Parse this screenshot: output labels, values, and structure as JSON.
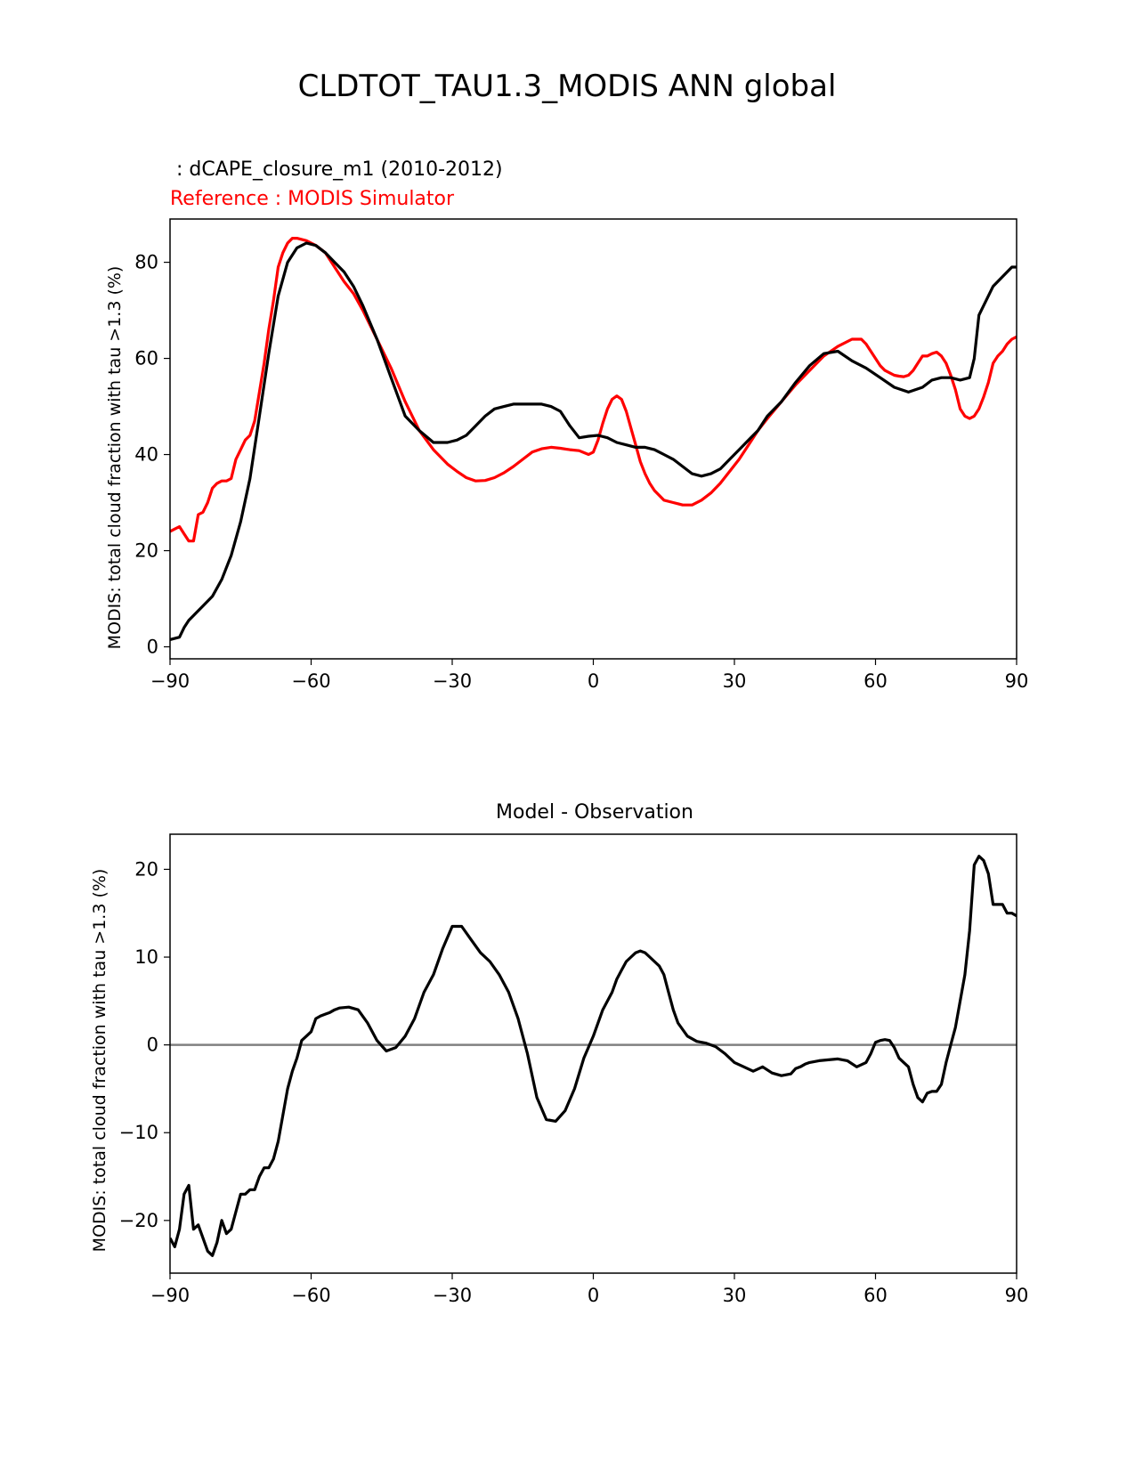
{
  "figure_title": "CLDTOT_TAU1.3_MODIS ANN global",
  "chart_data": [
    {
      "type": "line",
      "test_label": " : dCAPE_closure_m1 (2010-2012)",
      "ref_label": "Reference : MODIS Simulator",
      "title": "",
      "xlabel": "",
      "ylabel": "MODIS: total cloud fraction with tau >1.3 (%)",
      "xlim": [
        -90,
        90
      ],
      "ylim": [
        -2.5,
        89
      ],
      "xticks": [
        -90,
        -60,
        -30,
        0,
        30,
        60,
        90
      ],
      "xtick_labels": [
        "−90",
        "−60",
        "−30",
        "0",
        "30",
        "60",
        "90"
      ],
      "yticks": [
        0,
        20,
        40,
        60,
        80
      ],
      "ytick_labels": [
        "0",
        "20",
        "40",
        "60",
        "80"
      ],
      "series": [
        {
          "name": "dCAPE_closure_m1 (2010-2012)",
          "color": "#000000",
          "x": [
            -90,
            -88,
            -87,
            -86,
            -85,
            -83,
            -81,
            -79,
            -77,
            -75,
            -73,
            -71,
            -69,
            -67,
            -65,
            -63,
            -61,
            -59,
            -57,
            -55,
            -53,
            -51,
            -49,
            -46,
            -43,
            -40,
            -37,
            -34,
            -31,
            -29,
            -27,
            -25,
            -23,
            -21,
            -19,
            -17,
            -15,
            -13,
            -11,
            -9,
            -7,
            -5,
            -3,
            -1,
            1,
            3,
            5,
            7,
            9,
            11,
            13,
            15,
            17,
            19,
            21,
            23,
            25,
            27,
            29,
            31,
            33,
            35,
            37,
            40,
            43,
            46,
            49,
            52,
            55,
            58,
            61,
            64,
            67,
            70,
            72,
            74,
            76,
            78,
            80,
            81,
            82,
            83,
            85,
            87,
            89,
            90
          ],
          "values": [
            1.5,
            2,
            4,
            5.5,
            6.5,
            8.5,
            10.5,
            14,
            19,
            26,
            35,
            48,
            61,
            73,
            80,
            83,
            84,
            83.5,
            82,
            80,
            78,
            75,
            71,
            64,
            56,
            48,
            45,
            42.5,
            42.5,
            43,
            44,
            46,
            48,
            49.5,
            50,
            50.5,
            50.5,
            50.5,
            50.5,
            50,
            49,
            46,
            43.5,
            43.8,
            44,
            43.5,
            42.5,
            42,
            41.5,
            41.5,
            41,
            40,
            39,
            37.5,
            36,
            35.5,
            36,
            37,
            39,
            41,
            43,
            45,
            48,
            51,
            55,
            58.5,
            61,
            61.5,
            59.5,
            58,
            56,
            54,
            53,
            54,
            55.5,
            56,
            56,
            55.5,
            56,
            60,
            69,
            71,
            75,
            77,
            79,
            79
          ]
        },
        {
          "name": "Reference : MODIS Simulator",
          "color": "#ff0000",
          "x": [
            -90,
            -89,
            -88,
            -87,
            -86,
            -85,
            -84,
            -83,
            -82,
            -81,
            -80,
            -79,
            -78,
            -77,
            -76,
            -75,
            -74,
            -73,
            -72,
            -71,
            -70,
            -69,
            -68,
            -67,
            -66,
            -65,
            -64,
            -63,
            -61,
            -59,
            -57,
            -55,
            -53,
            -51,
            -49,
            -46,
            -43,
            -40,
            -37,
            -34,
            -31,
            -29,
            -27,
            -25,
            -23,
            -21,
            -19,
            -17,
            -15,
            -13,
            -11,
            -9,
            -7,
            -5,
            -3,
            -1,
            0,
            1,
            2,
            3,
            4,
            5,
            6,
            7,
            8,
            9,
            10,
            11,
            12,
            13,
            15,
            17,
            19,
            21,
            23,
            25,
            27,
            29,
            31,
            33,
            35,
            37,
            40,
            43,
            46,
            49,
            52,
            55,
            57,
            58,
            59,
            60,
            61,
            62,
            63,
            64,
            65,
            66,
            67,
            68,
            69,
            70,
            71,
            72,
            73,
            74,
            75,
            76,
            77,
            78,
            79,
            80,
            81,
            82,
            83,
            84,
            85,
            86,
            87,
            88,
            89,
            90
          ],
          "values": [
            24,
            24.5,
            25,
            23.5,
            22,
            22,
            27.5,
            28,
            30,
            33,
            34,
            34.5,
            34.5,
            35,
            39,
            41,
            43,
            44,
            47,
            53,
            59,
            66,
            72,
            79,
            82,
            84,
            85,
            85,
            84.5,
            83.5,
            82,
            79,
            76,
            73.5,
            70,
            64,
            58,
            51,
            45,
            41,
            38,
            36.5,
            35.2,
            34.5,
            34.6,
            35.2,
            36.2,
            37.5,
            39,
            40.5,
            41.2,
            41.5,
            41.3,
            41,
            40.8,
            40,
            40.5,
            43,
            46.5,
            49.5,
            51.5,
            52.2,
            51.5,
            49,
            45.5,
            42,
            38.5,
            36,
            34,
            32.5,
            30.5,
            30,
            29.5,
            29.5,
            30.5,
            32,
            34,
            36.5,
            39,
            42,
            45,
            47.5,
            51,
            54.5,
            57.5,
            60.5,
            62.5,
            64,
            64,
            63,
            61.5,
            60,
            58.5,
            57.5,
            57,
            56.5,
            56.3,
            56.2,
            56.5,
            57.5,
            59,
            60.5,
            60.5,
            61,
            61.3,
            60.5,
            59,
            56.5,
            53.5,
            49.5,
            48,
            47.5,
            48,
            49.5,
            52,
            55,
            59,
            60.5,
            61.5,
            63,
            64,
            64.5
          ]
        }
      ]
    },
    {
      "type": "line",
      "title": "Model - Observation",
      "xlabel": "",
      "ylabel": "MODIS: total cloud fraction with tau >1.3 (%)",
      "xlim": [
        -90,
        90
      ],
      "ylim": [
        -26,
        24
      ],
      "xticks": [
        -90,
        -60,
        -30,
        0,
        30,
        60,
        90
      ],
      "xtick_labels": [
        "−90",
        "−60",
        "−30",
        "0",
        "30",
        "60",
        "90"
      ],
      "yticks": [
        -20,
        -10,
        0,
        10,
        20
      ],
      "ytick_labels": [
        "−20",
        "−10",
        "0",
        "10",
        "20"
      ],
      "zero_line_color": "#808080",
      "series": [
        {
          "name": "Model - Observation",
          "color": "#000000",
          "x": [
            -90,
            -89,
            -88,
            -87,
            -86,
            -85,
            -84,
            -83,
            -82,
            -81,
            -80,
            -79,
            -78,
            -77,
            -76,
            -75,
            -74,
            -73,
            -72,
            -71,
            -70,
            -69,
            -68,
            -67,
            -66,
            -65,
            -64,
            -63,
            -62,
            -61,
            -60,
            -59,
            -58,
            -57,
            -56,
            -55,
            -54,
            -52,
            -50,
            -48,
            -46,
            -44,
            -42,
            -40,
            -38,
            -36,
            -34,
            -32,
            -30,
            -28,
            -26,
            -24,
            -22,
            -20,
            -18,
            -16,
            -14,
            -12,
            -10,
            -8,
            -6,
            -4,
            -2,
            0,
            2,
            4,
            5,
            6,
            7,
            8,
            9,
            10,
            11,
            12,
            13,
            14,
            15,
            16,
            17,
            18,
            20,
            22,
            24,
            26,
            28,
            30,
            32,
            34,
            36,
            38,
            40,
            42,
            43,
            44,
            45,
            46,
            48,
            50,
            52,
            54,
            56,
            58,
            59,
            60,
            61,
            62,
            63,
            64,
            65,
            66,
            67,
            68,
            69,
            70,
            71,
            72,
            73,
            74,
            75,
            76,
            77,
            78,
            79,
            80,
            81,
            82,
            83,
            84,
            85,
            86,
            87,
            88,
            89,
            90
          ],
          "values": [
            -22,
            -23,
            -21,
            -17,
            -16,
            -21,
            -20.5,
            -22,
            -23.5,
            -24,
            -22.5,
            -20,
            -21.5,
            -21,
            -19,
            -17,
            -17,
            -16.5,
            -16.5,
            -15,
            -14,
            -14,
            -13,
            -11,
            -8,
            -5,
            -3,
            -1.5,
            0.5,
            1,
            1.5,
            3,
            3.3,
            3.5,
            3.7,
            4,
            4.2,
            4.3,
            4,
            2.5,
            0.5,
            -0.7,
            -0.3,
            1,
            3,
            6,
            8,
            11,
            13.5,
            13.5,
            12,
            10.5,
            9.5,
            8,
            6,
            3,
            -1,
            -6,
            -8.5,
            -8.7,
            -7.5,
            -5,
            -1.5,
            1,
            4,
            6,
            7.5,
            8.5,
            9.5,
            10,
            10.5,
            10.7,
            10.5,
            10,
            9.5,
            9,
            8,
            6,
            4,
            2.5,
            1,
            0.4,
            0.2,
            -0.2,
            -1,
            -2,
            -2.5,
            -3,
            -2.5,
            -3.2,
            -3.5,
            -3.3,
            -2.7,
            -2.5,
            -2.2,
            -2,
            -1.8,
            -1.7,
            -1.6,
            -1.8,
            -2.5,
            -2,
            -1,
            0.3,
            0.5,
            0.6,
            0.5,
            -0.3,
            -1.5,
            -2,
            -2.5,
            -4.5,
            -6,
            -6.5,
            -5.5,
            -5.3,
            -5.3,
            -4.5,
            -2,
            0,
            2,
            5,
            8,
            13,
            20.5,
            21.5,
            21,
            19.5,
            16,
            16,
            16,
            15,
            15,
            14.7
          ]
        }
      ]
    }
  ]
}
